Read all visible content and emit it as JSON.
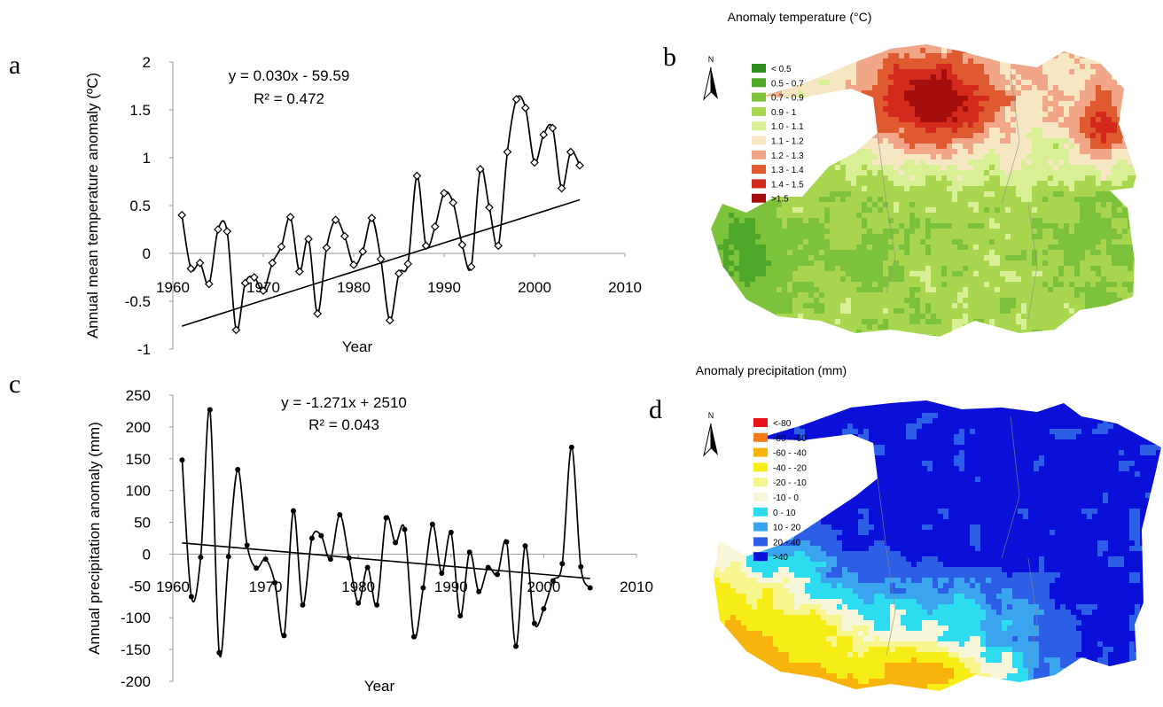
{
  "panels": {
    "a": "a",
    "b": "b",
    "c": "c",
    "d": "d"
  },
  "chart_data": [
    {
      "id": "a",
      "type": "line",
      "title": "",
      "xlabel": "Year",
      "ylabel": "Annual mean temperature anomaly (ºC)",
      "equation": "y = 0.030x - 59.59",
      "r2": "R² = 0.472",
      "xlim": [
        1960,
        2010
      ],
      "ylim": [
        -1,
        2
      ],
      "x_ticks": [
        "1960",
        "1970",
        "1980",
        "1990",
        "2000",
        "2010"
      ],
      "y_ticks": [
        "-1",
        "-0.5",
        "0",
        "0.5",
        "1",
        "1.5",
        "2"
      ],
      "y_tick_values": [
        -1,
        -0.5,
        0,
        0.5,
        1,
        1.5,
        2
      ],
      "x": [
        1961,
        1962,
        1963,
        1964,
        1965,
        1966,
        1967,
        1968,
        1969,
        1970,
        1971,
        1972,
        1973,
        1974,
        1975,
        1976,
        1977,
        1978,
        1979,
        1980,
        1981,
        1982,
        1983,
        1984,
        1985,
        1986,
        1987,
        1988,
        1989,
        1990,
        1991,
        1992,
        1993,
        1994,
        1995,
        1996,
        1997,
        1998,
        1999,
        2000,
        2001,
        2002,
        2003,
        2004,
        2005
      ],
      "values": [
        0.4,
        -0.16,
        -0.1,
        -0.32,
        0.25,
        0.23,
        -0.8,
        -0.31,
        -0.25,
        -0.39,
        -0.1,
        0.07,
        0.38,
        -0.19,
        0.15,
        -0.63,
        0.06,
        0.35,
        0.18,
        -0.12,
        0.02,
        0.37,
        -0.06,
        -0.7,
        -0.21,
        -0.11,
        0.81,
        0.08,
        0.28,
        0.63,
        0.53,
        0.09,
        -0.14,
        0.88,
        0.48,
        0.08,
        1.06,
        1.61,
        1.52,
        0.95,
        1.24,
        1.31,
        0.68,
        1.06,
        0.92
      ],
      "trendline": {
        "slope": 0.03,
        "intercept": -59.59
      }
    },
    {
      "id": "c",
      "type": "line",
      "title": "",
      "xlabel": "Year",
      "ylabel": "Annual precipitation anomaly (mm)",
      "equation": "y = -1.271x + 2510",
      "r2": "R² = 0.043",
      "xlim": [
        1960,
        2010
      ],
      "ylim": [
        -200,
        250
      ],
      "x_ticks": [
        "1960",
        "1970",
        "1980",
        "1990",
        "2000",
        "2010"
      ],
      "y_ticks": [
        "-200",
        "-150",
        "-100",
        "-50",
        "0",
        "50",
        "100",
        "150",
        "200",
        "250"
      ],
      "y_tick_values": [
        -200,
        -150,
        -100,
        -50,
        0,
        50,
        100,
        150,
        200,
        250
      ],
      "x": [
        1961,
        1962,
        1963,
        1964,
        1965,
        1966,
        1967,
        1968,
        1969,
        1970,
        1971,
        1972,
        1973,
        1974,
        1975,
        1976,
        1977,
        1978,
        1979,
        1980,
        1981,
        1982,
        1983,
        1984,
        1985,
        1986,
        1987,
        1988,
        1989,
        1990,
        1991,
        1992,
        1993,
        1994,
        1995,
        1996,
        1997,
        1998,
        1999,
        2000,
        2001,
        2002,
        2003,
        2004,
        2005
      ],
      "values": [
        148,
        -67,
        -5,
        227,
        -155,
        -4,
        133,
        14,
        -22,
        -8,
        -45,
        -128,
        68,
        -80,
        25,
        29,
        -8,
        62,
        -6,
        -77,
        -21,
        -80,
        57,
        18,
        39,
        -130,
        -53,
        47,
        -30,
        34,
        -97,
        3,
        -59,
        -21,
        -32,
        19,
        -145,
        13,
        -109,
        -86,
        -42,
        -15,
        168,
        -20,
        -53
      ],
      "trendline": {
        "slope": -1.271,
        "intercept": 2510
      }
    },
    {
      "id": "b",
      "type": "heatmap",
      "title": "Anomaly temperature (°C)",
      "north_label": "N",
      "legend": [
        {
          "label": "< 0.5",
          "color": "#2f8f1f"
        },
        {
          "label": "0.5 - 0.7",
          "color": "#4fa82a"
        },
        {
          "label": "0.7 - 0.9",
          "color": "#7cc23a"
        },
        {
          "label": "0.9 - 1",
          "color": "#a8d64e"
        },
        {
          "label": "1.0 - 1.1",
          "color": "#d8ef96"
        },
        {
          "label": "1.1 - 1.2",
          "color": "#f6e6c2"
        },
        {
          "label": "1.2 - 1.3",
          "color": "#f1a688"
        },
        {
          "label": "1.3 - 1.4",
          "color": "#df5a30"
        },
        {
          "label": "1.4 - 1.5",
          "color": "#d42a1e"
        },
        {
          "label": ">1.5",
          "color": "#a50e0e"
        }
      ]
    },
    {
      "id": "d",
      "type": "heatmap",
      "title": "Anomaly precipitation (mm)",
      "north_label": "N",
      "legend": [
        {
          "label": "<-80",
          "color": "#e8141c"
        },
        {
          "label": "-80 - -60",
          "color": "#f57a18"
        },
        {
          "label": "-60 - -40",
          "color": "#f8b30c"
        },
        {
          "label": "-40 - -20",
          "color": "#f7ee18"
        },
        {
          "label": "-20 - -10",
          "color": "#f7f58c"
        },
        {
          "label": "-10 - 0",
          "color": "#f8f6d8"
        },
        {
          "label": "0 - 10",
          "color": "#2ddcef"
        },
        {
          "label": "10 - 20",
          "color": "#3aa4ee"
        },
        {
          "label": "20 - 40",
          "color": "#2c5fe6"
        },
        {
          "label": ">40",
          "color": "#0a10d8"
        }
      ]
    }
  ]
}
